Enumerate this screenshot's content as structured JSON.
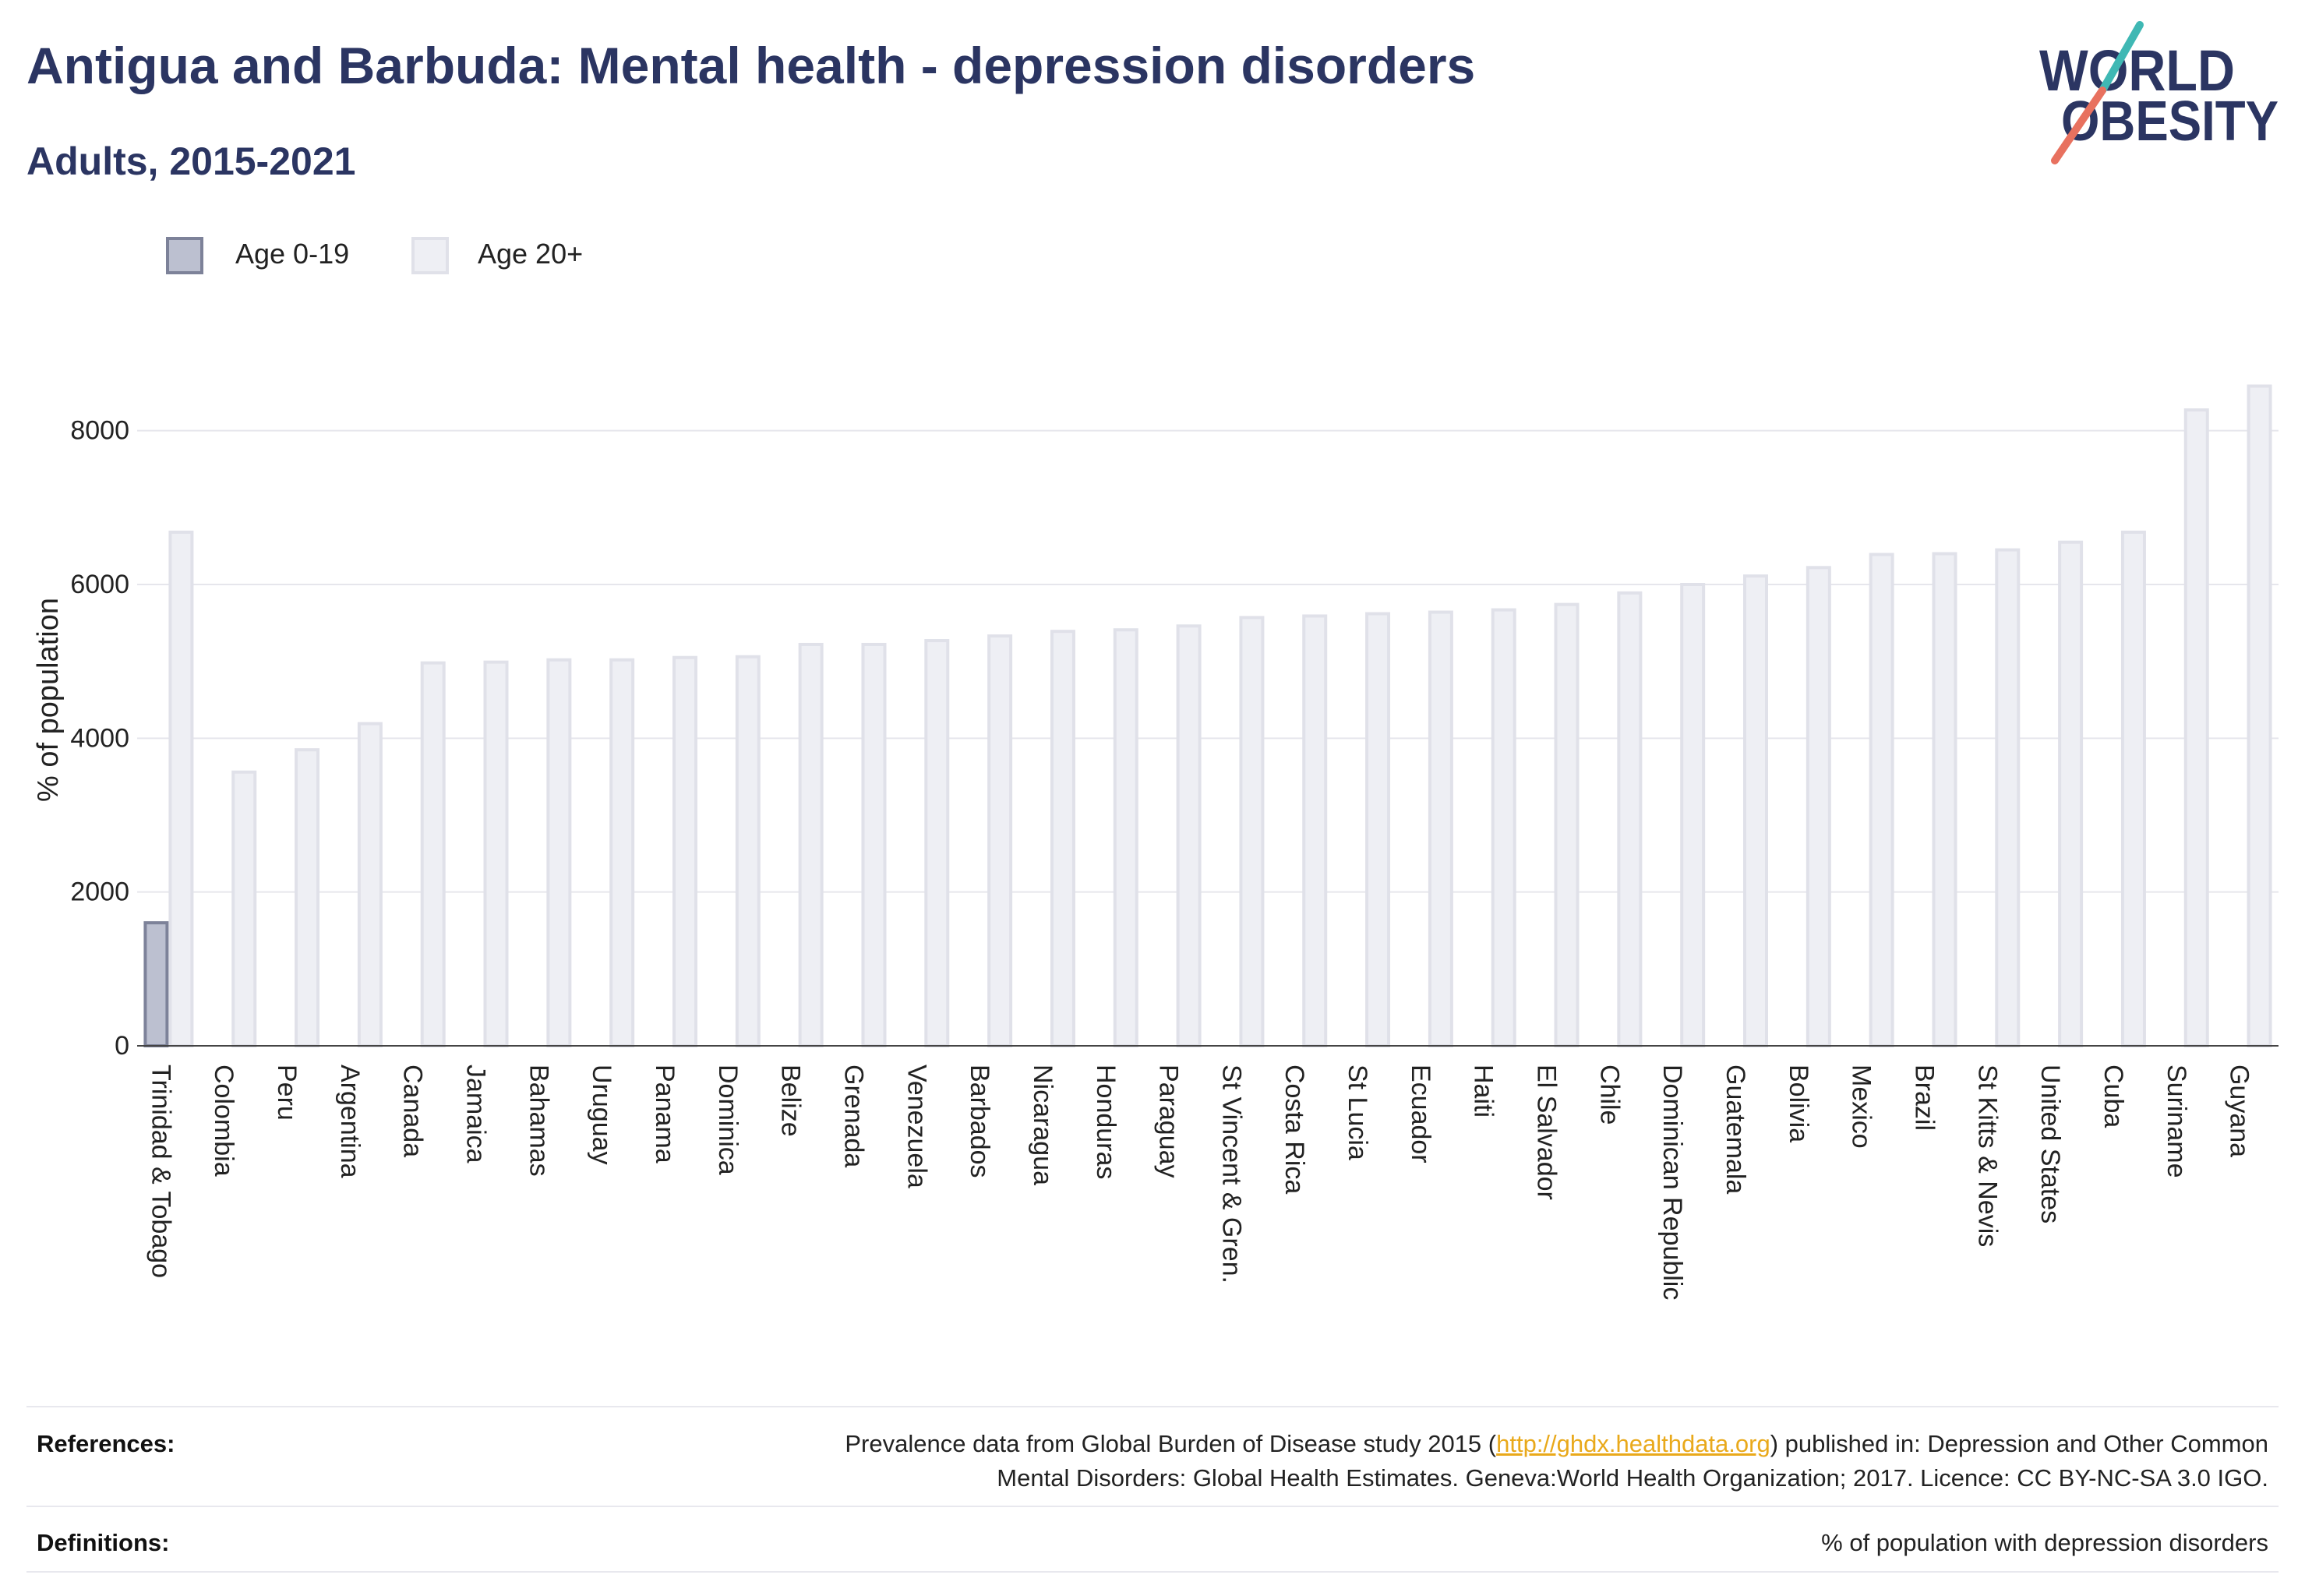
{
  "chart_data": {
    "type": "bar",
    "title": "Antigua and Barbuda: Mental health - depression disorders",
    "subtitle": "Adults, 2015-2021",
    "xlabel": "",
    "ylabel": "% of population",
    "ylim": [
      0,
      9000
    ],
    "yticks": [
      0,
      2000,
      4000,
      6000,
      8000
    ],
    "grid": true,
    "legend": "top-left",
    "categories": [
      "Trinidad & Tobago",
      "Colombia",
      "Peru",
      "Argentina",
      "Canada",
      "Jamaica",
      "Bahamas",
      "Uruguay",
      "Panama",
      "Dominica",
      "Belize",
      "Grenada",
      "Venezuela",
      "Barbados",
      "Nicaragua",
      "Honduras",
      "Paraguay",
      "St Vincent & Gren.",
      "Costa Rica",
      "St Lucia",
      "Ecuador",
      "Haiti",
      "El Salvador",
      "Chile",
      "Dominican Republic",
      "Guatemala",
      "Bolivia",
      "Mexico",
      "Brazil",
      "St Kitts & Nevis",
      "United States",
      "Cuba",
      "Suriname",
      "Guyana"
    ],
    "series": [
      {
        "name": "Age 0-19",
        "values": [
          1600,
          null,
          null,
          null,
          null,
          null,
          null,
          null,
          null,
          null,
          null,
          null,
          null,
          null,
          null,
          null,
          null,
          null,
          null,
          null,
          null,
          null,
          null,
          null,
          null,
          null,
          null,
          null,
          null,
          null,
          null,
          null,
          null,
          null
        ]
      },
      {
        "name": "Age 20+",
        "values": [
          6680,
          3560,
          3850,
          4190,
          4980,
          4990,
          5020,
          5020,
          5050,
          5060,
          5220,
          5220,
          5270,
          5330,
          5390,
          5410,
          5460,
          5570,
          5590,
          5620,
          5640,
          5670,
          5740,
          5890,
          6000,
          6110,
          6220,
          6390,
          6400,
          6450,
          6550,
          6680,
          8270,
          8580
        ]
      }
    ]
  },
  "logo": {
    "line1": "WORLD",
    "line2": "OBESITY"
  },
  "footer": {
    "references": {
      "label": "References:",
      "line1_before_link": "Prevalence data from Global Burden of Disease study 2015 (",
      "link": "http://ghdx.healthdata.org",
      "line1_after_link": ") published in: Depression and Other Common",
      "line2": "Mental Disorders: Global Health Estimates. Geneva:World Health Organization; 2017. Licence: CC BY-NC-SA 3.0 IGO."
    },
    "definitions": {
      "label": "Definitions:",
      "text": "% of population with depression disorders"
    }
  },
  "colors": {
    "title": "#2b3562",
    "age_0_19_fill": "#bcc0d0",
    "age_0_19_stroke": "#7d8299",
    "age_20_fill": "#eeeff4",
    "age_20_stroke": "#e0e1e9",
    "grid": "#e6e6ec",
    "axis": "#444444",
    "link": "#e9a91b",
    "logo_teal": "#3fb8b4",
    "logo_coral": "#e8715f"
  }
}
